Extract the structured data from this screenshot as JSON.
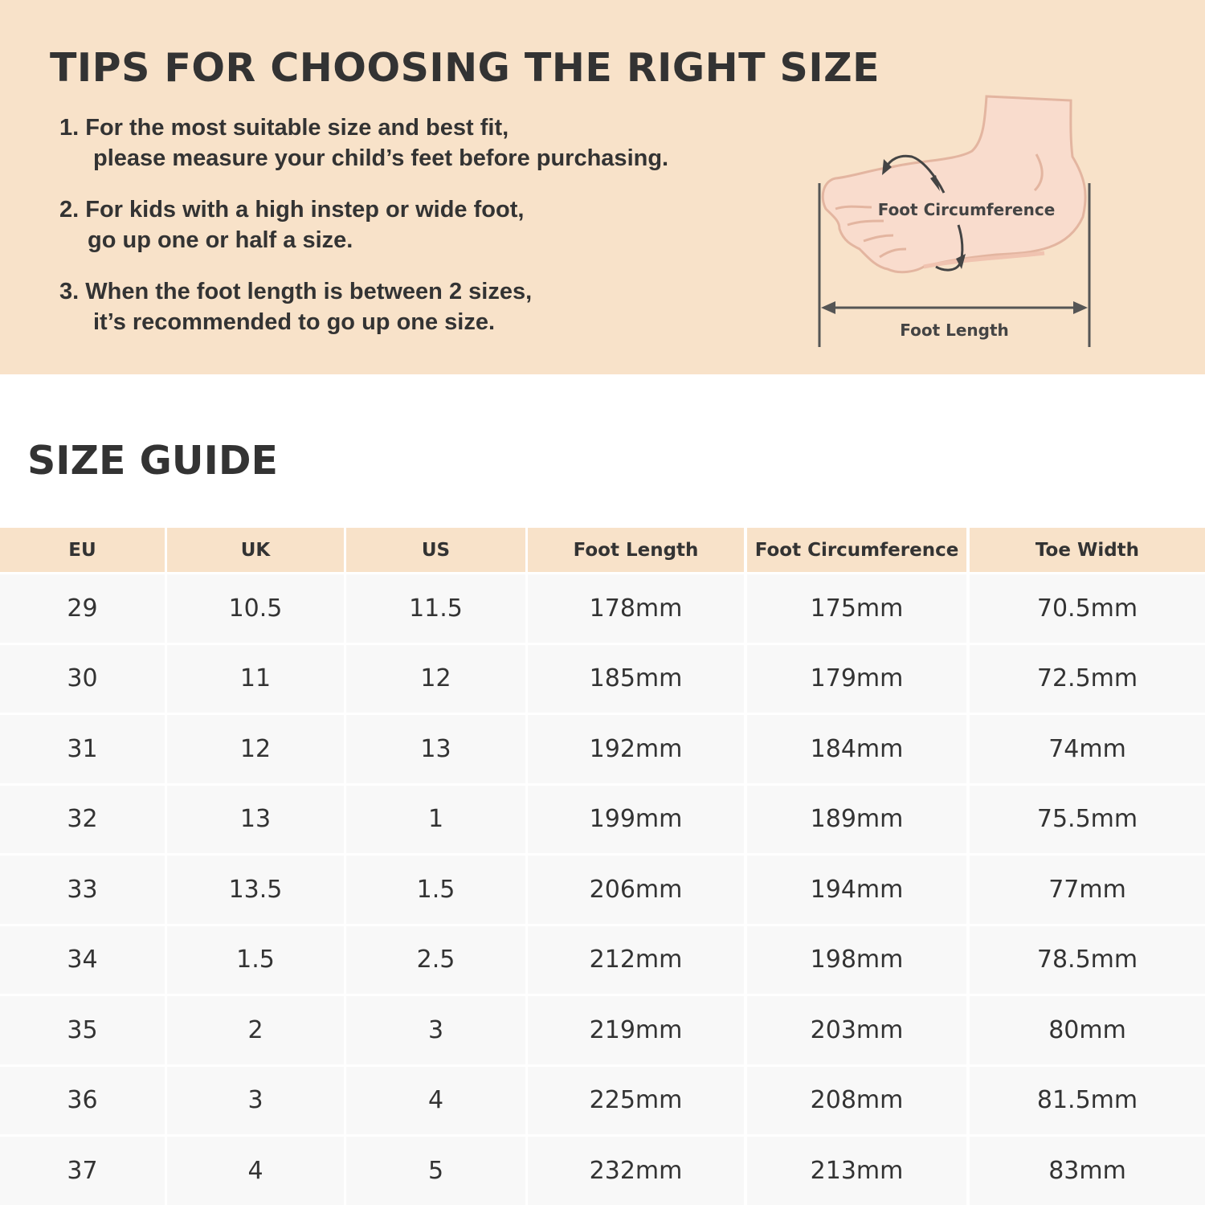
{
  "tips": {
    "title": "TIPS FOR CHOOSING THE RIGHT SIZE",
    "items": [
      {
        "line1": "1. For the most suitable size and best fit,",
        "line2": "please measure your child’s feet before purchasing."
      },
      {
        "line1": "2. For kids with a high instep or wide foot,",
        "line2": "go up one or half a size."
      },
      {
        "line1": "3. When the foot length is between 2 sizes,",
        "line2": "it’s recommended to go up one size."
      }
    ],
    "diagram": {
      "circumference_label": "Foot Circumference",
      "length_label": "Foot Length"
    }
  },
  "size_guide": {
    "title": "SIZE GUIDE",
    "columns": [
      "EU",
      "UK",
      "US",
      "Foot Length",
      "Foot Circumference",
      "Toe Width"
    ],
    "rows": [
      [
        "29",
        "10.5",
        "11.5",
        "178mm",
        "175mm",
        "70.5mm"
      ],
      [
        "30",
        "11",
        "12",
        "185mm",
        "179mm",
        "72.5mm"
      ],
      [
        "31",
        "12",
        "13",
        "192mm",
        "184mm",
        "74mm"
      ],
      [
        "32",
        "13",
        "1",
        "199mm",
        "189mm",
        "75.5mm"
      ],
      [
        "33",
        "13.5",
        "1.5",
        "206mm",
        "194mm",
        "77mm"
      ],
      [
        "34",
        "1.5",
        "2.5",
        "212mm",
        "198mm",
        "78.5mm"
      ],
      [
        "35",
        "2",
        "3",
        "219mm",
        "203mm",
        "80mm"
      ],
      [
        "36",
        "3",
        "4",
        "225mm",
        "208mm",
        "81.5mm"
      ],
      [
        "37",
        "4",
        "5",
        "232mm",
        "213mm",
        "83mm"
      ]
    ]
  },
  "colors": {
    "peach": "#f8e2c9",
    "row": "#f8f8f8",
    "text": "#333333",
    "skin": "#f9dccd",
    "skin_outline": "#e3b5a0"
  }
}
